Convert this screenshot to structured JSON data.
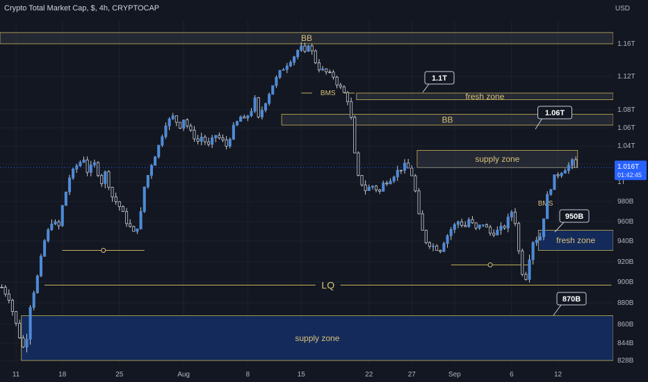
{
  "header": {
    "title": "Crypto Total Market Cap, $, 4h, CRYPTOCAP",
    "unit": "USD"
  },
  "price_tag": {
    "value": "1.016T",
    "countdown": "01:42:45"
  },
  "colors": {
    "background": "#131722",
    "grid": "#1e222d",
    "candle": "#4e8bd6",
    "wick": "#c9ced6",
    "gold_line": "#c8b45a",
    "gold_text": "#d8c27a",
    "zone_gray": "#3a3e49",
    "zone_blue": "#142e64",
    "callout_bg": "#131722",
    "price_tag_bg": "#2962ff"
  },
  "chart_data": {
    "type": "candlestick",
    "x_tick_labels": [
      "11",
      "18",
      "25",
      "Aug",
      "8",
      "15",
      "22",
      "27",
      "Sep",
      "6",
      "12"
    ],
    "y_tick_labels": [
      "1.16T",
      "1.12T",
      "1.08T",
      "1.06T",
      "1.04T",
      "1.02T",
      "1T",
      "980B",
      "960B",
      "940B",
      "920B",
      "900B",
      "880B",
      "860B",
      "844B",
      "828B"
    ],
    "close_path": [
      [
        0,
        895
      ],
      [
        2,
        885
      ],
      [
        4,
        860
      ],
      [
        6,
        840
      ],
      [
        7,
        850
      ],
      [
        8,
        878
      ],
      [
        10,
        905
      ],
      [
        12,
        940
      ],
      [
        14,
        960
      ],
      [
        16,
        955
      ],
      [
        17,
        975
      ],
      [
        19,
        1005
      ],
      [
        21,
        1018
      ],
      [
        23,
        1026
      ],
      [
        24,
        1012
      ],
      [
        26,
        1020
      ],
      [
        28,
        1000
      ],
      [
        29,
        1010
      ],
      [
        31,
        985
      ],
      [
        33,
        975
      ],
      [
        35,
        960
      ],
      [
        37,
        948
      ],
      [
        38,
        955
      ],
      [
        39,
        968
      ],
      [
        40,
        995
      ],
      [
        42,
        1020
      ],
      [
        44,
        1040
      ],
      [
        46,
        1065
      ],
      [
        48,
        1072
      ],
      [
        50,
        1062
      ],
      [
        51,
        1070
      ],
      [
        53,
        1055
      ],
      [
        55,
        1045
      ],
      [
        56,
        1050
      ],
      [
        58,
        1040
      ],
      [
        60,
        1052
      ],
      [
        62,
        1045
      ],
      [
        63,
        1040
      ],
      [
        65,
        1060
      ],
      [
        67,
        1072
      ],
      [
        68,
        1068
      ],
      [
        70,
        1080
      ],
      [
        71,
        1092
      ],
      [
        72,
        1070
      ],
      [
        74,
        1090
      ],
      [
        76,
        1110
      ],
      [
        78,
        1125
      ],
      [
        80,
        1135
      ],
      [
        82,
        1145
      ],
      [
        83,
        1152
      ],
      [
        84,
        1155
      ],
      [
        85,
        1148
      ],
      [
        86,
        1160
      ],
      [
        87,
        1150
      ],
      [
        88,
        1138
      ],
      [
        89,
        1130
      ],
      [
        91,
        1125
      ],
      [
        93,
        1120
      ],
      [
        94,
        1112
      ],
      [
        96,
        1100
      ],
      [
        97,
        1092
      ],
      [
        98,
        1070
      ],
      [
        99,
        1030
      ],
      [
        100,
        1005
      ],
      [
        102,
        992
      ],
      [
        104,
        996
      ],
      [
        106,
        990
      ],
      [
        107,
        998
      ],
      [
        109,
        1004
      ],
      [
        111,
        1012
      ],
      [
        113,
        1018
      ],
      [
        114,
        1015
      ],
      [
        115,
        1008
      ],
      [
        116,
        990
      ],
      [
        117,
        965
      ],
      [
        118,
        950
      ],
      [
        119,
        940
      ],
      [
        121,
        935
      ],
      [
        123,
        932
      ],
      [
        124,
        940
      ],
      [
        126,
        952
      ],
      [
        128,
        960
      ],
      [
        130,
        955
      ],
      [
        131,
        962
      ],
      [
        133,
        952
      ],
      [
        135,
        958
      ],
      [
        137,
        948
      ],
      [
        139,
        950
      ],
      [
        141,
        955
      ],
      [
        142,
        962
      ],
      [
        143,
        970
      ],
      [
        144,
        960
      ],
      [
        145,
        930
      ],
      [
        146,
        910
      ],
      [
        147,
        905
      ],
      [
        148,
        925
      ],
      [
        149,
        940
      ],
      [
        151,
        945
      ],
      [
        153,
        985
      ],
      [
        155,
        1005
      ],
      [
        157,
        1012
      ],
      [
        159,
        1018
      ],
      [
        160,
        1022
      ],
      [
        161,
        1015
      ]
    ],
    "price_range": [
      828,
      1180
    ],
    "last_price": 1016,
    "price_line_label": "1.016T",
    "zones": [
      {
        "label": "BB",
        "top": 1174,
        "bottom": 1160,
        "x_start": 0,
        "x_end": 171,
        "style": "gray"
      },
      {
        "label": "fresh zone",
        "top": 1100,
        "bottom": 1092,
        "x_start": 100,
        "x_end": 171,
        "style": "gray"
      },
      {
        "label": "BB",
        "top": 1075,
        "bottom": 1063,
        "x_start": 79,
        "x_end": 171,
        "style": "gray"
      },
      {
        "label": "supply zone",
        "top": 1035,
        "bottom": 1016,
        "x_start": 117,
        "x_end": 161,
        "style": "gray"
      },
      {
        "label": "fresh zone",
        "top": 951,
        "bottom": 931,
        "x_start": 151,
        "x_end": 171,
        "style": "blue"
      },
      {
        "label": "supply zone",
        "top": 868,
        "bottom": 828,
        "x_start": 6,
        "x_end": 171,
        "style": "blue"
      }
    ],
    "lines": [
      {
        "label": "BMS",
        "price": 1100,
        "x_start": 84,
        "x_end": 99
      },
      {
        "label": "BMS",
        "price": 978,
        "x_start": 148,
        "x_end": 157
      },
      {
        "label": "LQ",
        "price": 897,
        "x_start": 12,
        "x_end": 171
      },
      {
        "label": "",
        "price": 931,
        "x_start": 17,
        "x_end": 40,
        "marker": "circle"
      },
      {
        "label": "",
        "price": 917,
        "x_start": 126,
        "x_end": 148,
        "marker": "circle"
      }
    ],
    "callouts": [
      {
        "label": "1.1T",
        "price": 1112
      },
      {
        "label": "1.06T",
        "price": 1081
      },
      {
        "label": "950B",
        "price": 960
      },
      {
        "label": "870B",
        "price": 885
      }
    ]
  }
}
